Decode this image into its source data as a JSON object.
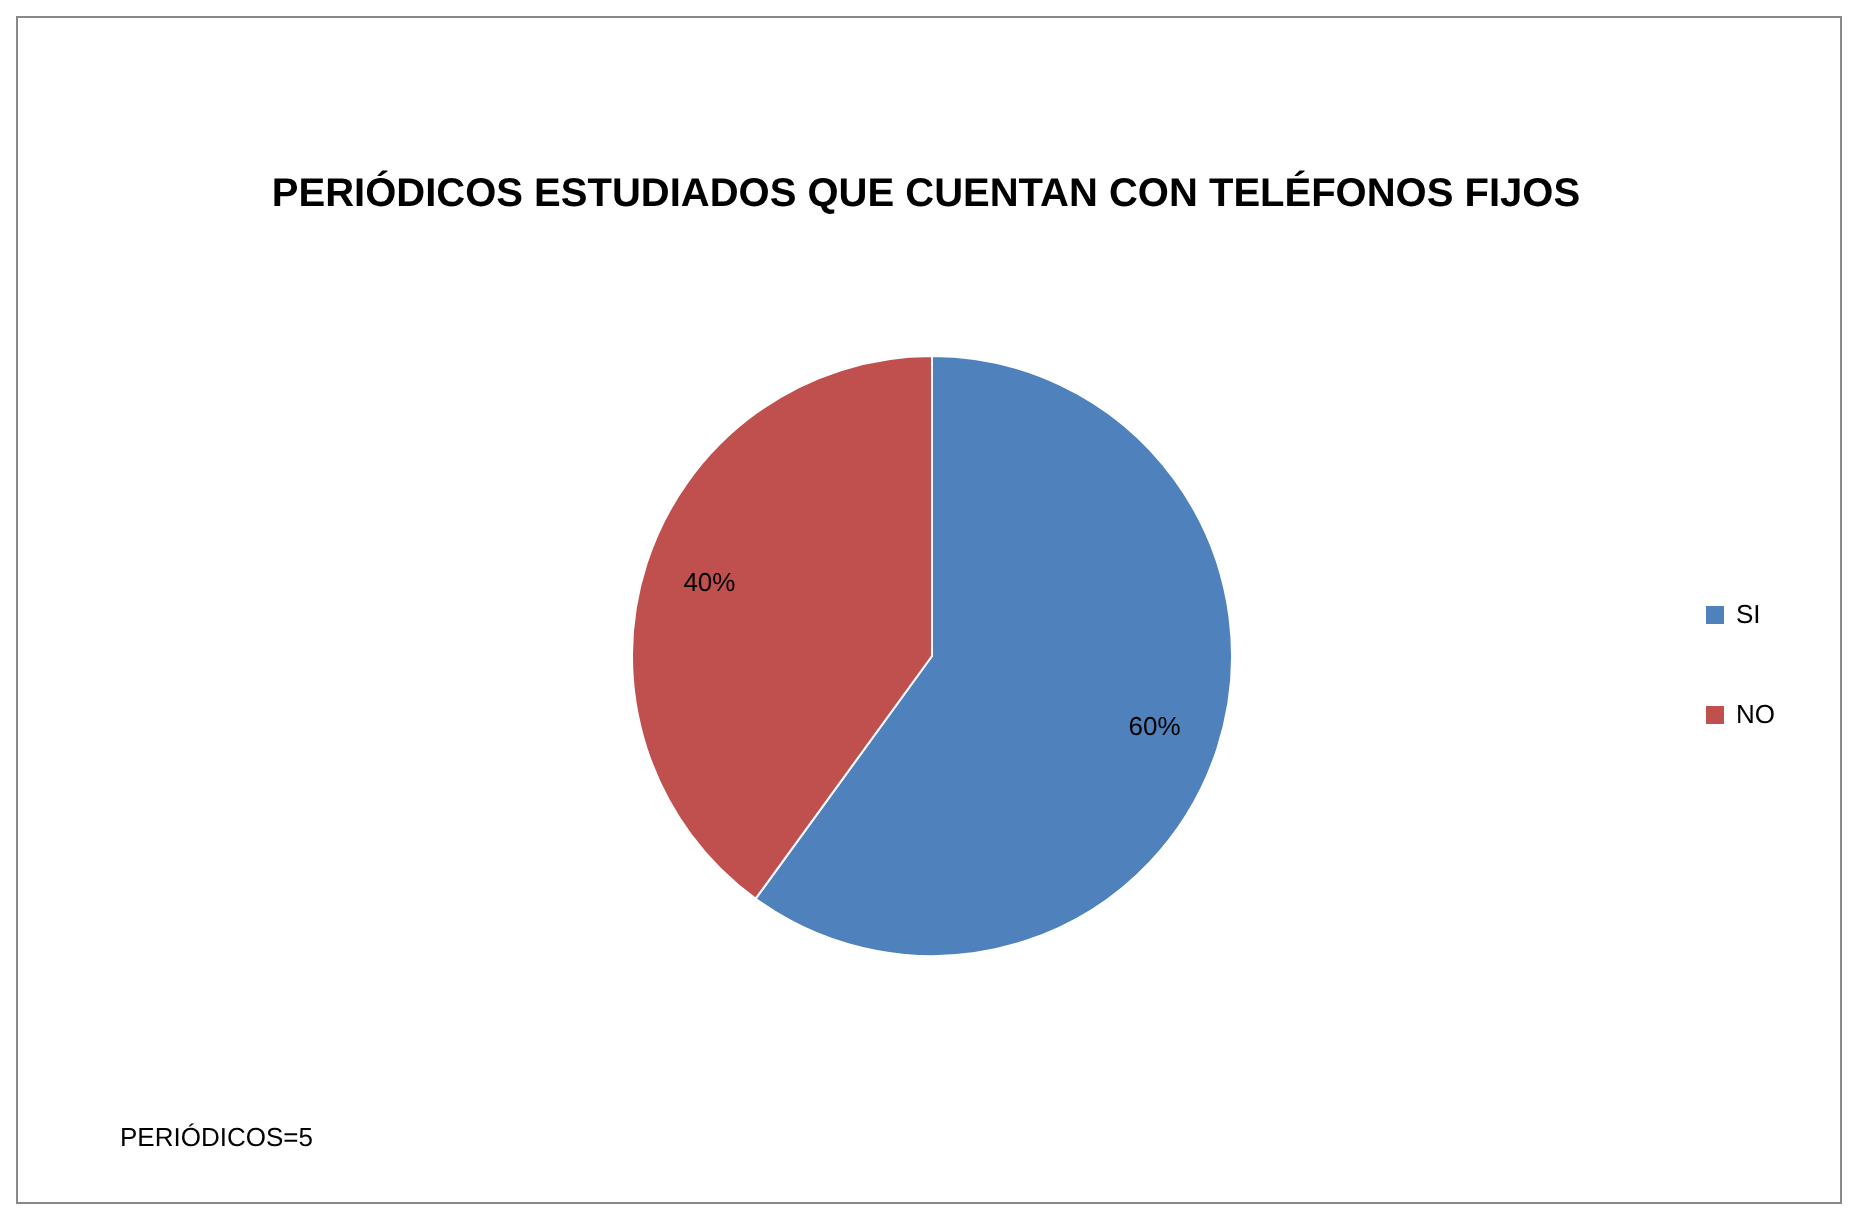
{
  "chart_data": {
    "type": "pie",
    "title": "PERIÓDICOS ESTUDIADOS  QUE CUENTAN CON TELÉFONOS FIJOS",
    "categories": [
      "SI",
      "NO"
    ],
    "values": [
      60,
      40
    ],
    "colors": [
      "#4f81bd",
      "#c0504d"
    ],
    "value_labels": [
      "60%",
      "40%"
    ],
    "legend": "right",
    "annotations": [
      "PERIÓDICOS=5"
    ]
  }
}
